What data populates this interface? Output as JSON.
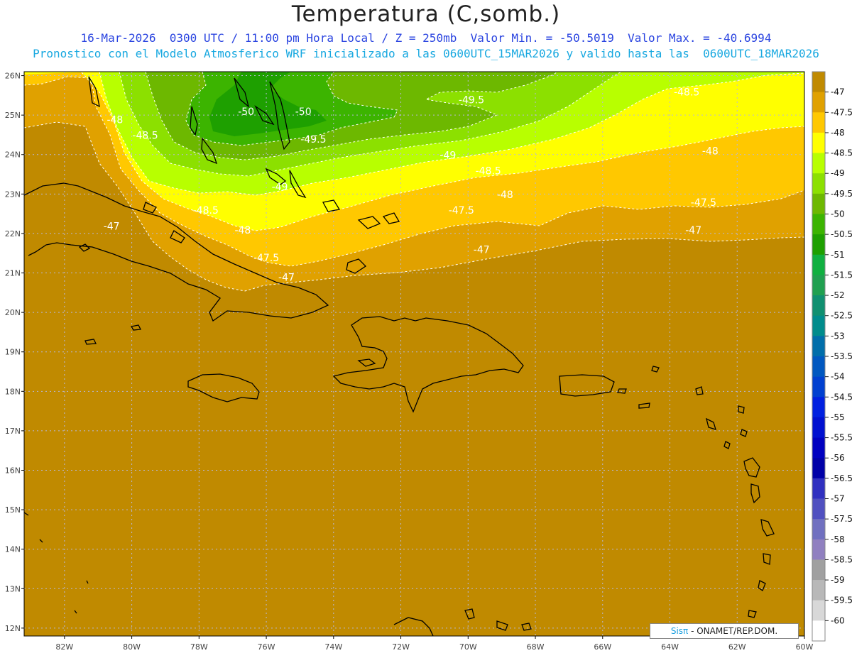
{
  "header": {
    "title": "Temperatura (C,somb.)",
    "line1": "16-Mar-2026  0300 UTC / 11:00 pm Hora Local / Z = 250mb  Valor Min. = -50.5019  Valor Max. = -40.6994",
    "line2": "Pronostico con el Modelo Atmosferico WRF inicializado a las 0600UTC_15MAR2026 y valido hasta las  0600UTC_18MAR2026"
  },
  "map": {
    "lon_range": [
      -83.2,
      -60
    ],
    "lat_range": [
      11.8,
      26.1
    ],
    "lat_ticks": [
      "12N",
      "13N",
      "14N",
      "15N",
      "16N",
      "17N",
      "18N",
      "19N",
      "20N",
      "21N",
      "22N",
      "23N",
      "24N",
      "25N",
      "26N"
    ],
    "lon_ticks": [
      "82W",
      "80W",
      "78W",
      "76W",
      "74W",
      "72W",
      "70W",
      "68W",
      "66W",
      "64W",
      "62W",
      "60W"
    ],
    "contour_labels": [
      {
        "text": "-50",
        "lon": -76.6,
        "lat": 25.0
      },
      {
        "text": "-50",
        "lon": -74.9,
        "lat": 25.0
      },
      {
        "text": "-49.5",
        "lon": -69.9,
        "lat": 25.3
      },
      {
        "text": "-49.5",
        "lon": -74.6,
        "lat": 24.3
      },
      {
        "text": "-49",
        "lon": -70.6,
        "lat": 23.9
      },
      {
        "text": "-49",
        "lon": -75.6,
        "lat": 23.1
      },
      {
        "text": "-48.5",
        "lon": -63.5,
        "lat": 25.5
      },
      {
        "text": "-48.5",
        "lon": -79.6,
        "lat": 24.4
      },
      {
        "text": "-48.5",
        "lon": -69.4,
        "lat": 23.5
      },
      {
        "text": "-48.5",
        "lon": -77.8,
        "lat": 22.5
      },
      {
        "text": "-48",
        "lon": -80.5,
        "lat": 24.8
      },
      {
        "text": "-48",
        "lon": -62.8,
        "lat": 24.0
      },
      {
        "text": "-48",
        "lon": -68.9,
        "lat": 22.9
      },
      {
        "text": "-48",
        "lon": -76.7,
        "lat": 22.0
      },
      {
        "text": "-47.5",
        "lon": -63.0,
        "lat": 22.7
      },
      {
        "text": "-47.5",
        "lon": -70.2,
        "lat": 22.5
      },
      {
        "text": "-47.5",
        "lon": -76.0,
        "lat": 21.3
      },
      {
        "text": "-47",
        "lon": -80.6,
        "lat": 22.1
      },
      {
        "text": "-47",
        "lon": -63.3,
        "lat": 22.0
      },
      {
        "text": "-47",
        "lon": -69.6,
        "lat": 21.5
      },
      {
        "text": "-47",
        "lon": -75.4,
        "lat": 20.8
      }
    ],
    "colors": {
      "c_below47": "#c08a00",
      "c47": "#e0a100",
      "c475": "#ffc800",
      "c48": "#ffff00",
      "c485": "#b8ff00",
      "c49": "#8ce000",
      "c495": "#6db800",
      "c50": "#3cb400",
      "c505": "#1ea000"
    }
  },
  "colorbar": {
    "labels": [
      "-47",
      "-47.5",
      "-48",
      "-48.5",
      "-49",
      "-49.5",
      "-50",
      "-50.5",
      "-51",
      "-51.5",
      "-52",
      "-52.5",
      "-53",
      "-53.5",
      "-54",
      "-54.5",
      "-55",
      "-55.5",
      "-56",
      "-56.5",
      "-57",
      "-57.5",
      "-58",
      "-58.5",
      "-59",
      "-59.5",
      "-60"
    ],
    "colors": [
      "#c08a00",
      "#e0a100",
      "#ffc800",
      "#ffff00",
      "#b8ff00",
      "#8ce000",
      "#6db800",
      "#3cb400",
      "#1ea000",
      "#10b040",
      "#20a050",
      "#109070",
      "#008c8c",
      "#006eaa",
      "#0058c0",
      "#0040d0",
      "#0020e0",
      "#0010d0",
      "#0000c0",
      "#0000a8",
      "#3030c0",
      "#5050c0",
      "#7070c0",
      "#9080c0",
      "#a0a0a0",
      "#b8b8b8",
      "#d8d8d8",
      "#ffffff"
    ]
  },
  "credit": {
    "brand": "Sisπ",
    "text": " - ONAMET/REP.DOM."
  }
}
